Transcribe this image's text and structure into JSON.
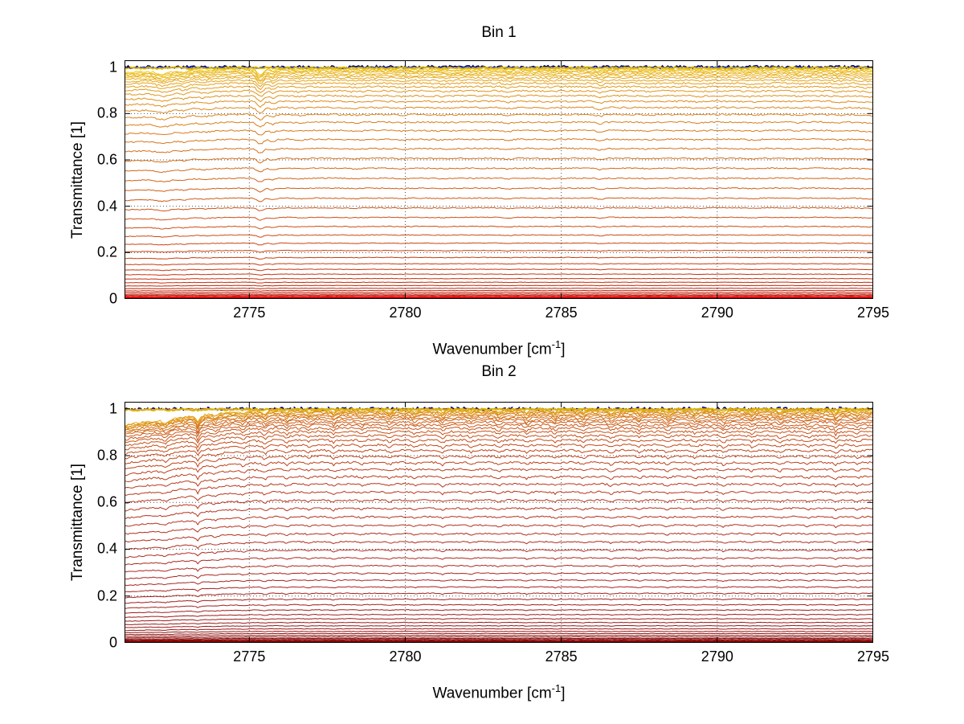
{
  "figure": {
    "background": "#ffffff"
  },
  "chart_data": [
    {
      "type": "line",
      "title": "Bin 1",
      "xlabel_pre": "Wavenumber [cm",
      "xlabel_sup": "-1",
      "xlabel_post": "]",
      "ylabel": "Transmittance [1]",
      "xlim": [
        2771,
        2795
      ],
      "ylim": [
        0,
        1
      ],
      "xticks": [
        2775,
        2780,
        2785,
        2790,
        2795
      ],
      "xticklabels": [
        "2775",
        "2780",
        "2785",
        "2790",
        "2795"
      ],
      "yticks": [
        0,
        0.2,
        0.4,
        0.6,
        0.8,
        1
      ],
      "yticklabels": [
        "0",
        "0.2",
        "0.4",
        "0.6",
        "0.8",
        "1"
      ],
      "grid": true,
      "grid_style": "dotted",
      "levels": [
        0.995,
        0.99,
        0.985,
        0.979,
        0.972,
        0.964,
        0.955,
        0.944,
        0.931,
        0.916,
        0.898,
        0.877,
        0.853,
        0.826,
        0.796,
        0.763,
        0.727,
        0.689,
        0.649,
        0.607,
        0.564,
        0.521,
        0.478,
        0.435,
        0.393,
        0.352,
        0.313,
        0.276,
        0.241,
        0.209,
        0.179,
        0.152,
        0.128,
        0.107,
        0.088,
        0.072,
        0.058,
        0.046,
        0.036,
        0.028,
        0.021,
        0.016,
        0.011,
        0.008,
        0.005,
        0.003
      ],
      "feature_shape": "gauss",
      "features": [
        [
          2772.25,
          0.22,
          0.05
        ],
        [
          2772.9,
          0.13,
          0.03
        ],
        [
          2773.6,
          0.18,
          0.02
        ],
        [
          2775.35,
          0.1,
          0.09
        ],
        [
          2775.75,
          0.09,
          0.04
        ],
        [
          2776.6,
          0.15,
          0.015
        ],
        [
          2778.4,
          0.2,
          0.013
        ],
        [
          2779.9,
          0.15,
          0.012
        ],
        [
          2781.2,
          0.25,
          0.01
        ],
        [
          2783.3,
          0.12,
          0.02
        ],
        [
          2784.6,
          0.15,
          0.01
        ],
        [
          2786.25,
          0.1,
          0.03
        ],
        [
          2787.8,
          0.18,
          0.01
        ],
        [
          2789.4,
          0.14,
          0.012
        ],
        [
          2791.1,
          0.2,
          0.012
        ],
        [
          2792.6,
          0.12,
          0.01
        ],
        [
          2793.9,
          0.15,
          0.014
        ],
        [
          2794.9,
          0.25,
          0.02
        ]
      ],
      "left_edge_absorption": {
        "edge": 2775.0,
        "span": 4.0,
        "max": 0.06,
        "pow": 1.5
      },
      "noise_amp": 0.004,
      "color_stops": [
        {
          "t": 0,
          "c": "#ecc51f"
        },
        {
          "t": 0.3,
          "c": "#dd8418"
        },
        {
          "t": 0.55,
          "c": "#cf5214"
        },
        {
          "t": 0.8,
          "c": "#c42a0e"
        },
        {
          "t": 1,
          "c": "#b00505"
        }
      ],
      "reference_lines": [
        {
          "level": 1.001,
          "color": "#00008b",
          "noise": 0.006,
          "width": 1.6,
          "dash": ""
        },
        {
          "level": 0.999,
          "color": "#1f3fbf",
          "noise": 0.004,
          "width": 1,
          "dash": ""
        },
        {
          "level": 0.997,
          "color": "#d7b400",
          "noise": 0.004,
          "width": 2,
          "dash": ""
        }
      ],
      "baseline": {
        "level": 0.004,
        "color": "#e60000",
        "width": 4
      }
    },
    {
      "type": "line",
      "title": "Bin 2",
      "xlabel_pre": "Wavenumber [cm",
      "xlabel_sup": "-1",
      "xlabel_post": "]",
      "ylabel": "Transmittance [1]",
      "xlim": [
        2771,
        2795
      ],
      "ylim": [
        0,
        1
      ],
      "xticks": [
        2775,
        2780,
        2785,
        2790,
        2795
      ],
      "xticklabels": [
        "2775",
        "2780",
        "2785",
        "2790",
        "2795"
      ],
      "yticks": [
        0,
        0.2,
        0.4,
        0.6,
        0.8,
        1
      ],
      "yticklabels": [
        "0",
        "0.2",
        "0.4",
        "0.6",
        "0.8",
        "1"
      ],
      "grid": true,
      "grid_style": "dotted",
      "levels": [
        0.996,
        0.992,
        0.988,
        0.983,
        0.977,
        0.97,
        0.962,
        0.953,
        0.943,
        0.931,
        0.918,
        0.903,
        0.886,
        0.867,
        0.846,
        0.823,
        0.798,
        0.771,
        0.742,
        0.711,
        0.679,
        0.645,
        0.61,
        0.575,
        0.539,
        0.503,
        0.467,
        0.432,
        0.397,
        0.363,
        0.33,
        0.298,
        0.268,
        0.239,
        0.212,
        0.187,
        0.163,
        0.141,
        0.121,
        0.103,
        0.087,
        0.073,
        0.06,
        0.049,
        0.04,
        0.032,
        0.025,
        0.019,
        0.015,
        0.011,
        0.008,
        0.006,
        0.004,
        0.003,
        0.002
      ],
      "feature_shape": "spike",
      "features": [
        [
          2772.3,
          0.15,
          0.06
        ],
        [
          2773.35,
          0.08,
          0.1
        ],
        [
          2773.9,
          0.1,
          0.04
        ],
        [
          2774.8,
          0.09,
          0.05
        ],
        [
          2775.5,
          0.08,
          0.07
        ],
        [
          2776.2,
          0.09,
          0.05
        ],
        [
          2776.9,
          0.08,
          0.04
        ],
        [
          2777.7,
          0.09,
          0.05
        ],
        [
          2778.6,
          0.08,
          0.04
        ],
        [
          2779.5,
          0.09,
          0.045
        ],
        [
          2780.3,
          0.08,
          0.04
        ],
        [
          2781.2,
          0.09,
          0.05
        ],
        [
          2782.1,
          0.08,
          0.04
        ],
        [
          2783.0,
          0.09,
          0.045
        ],
        [
          2783.9,
          0.08,
          0.05
        ],
        [
          2784.8,
          0.09,
          0.04
        ],
        [
          2785.7,
          0.08,
          0.045
        ],
        [
          2786.6,
          0.09,
          0.05
        ],
        [
          2787.5,
          0.08,
          0.04
        ],
        [
          2788.4,
          0.09,
          0.045
        ],
        [
          2789.3,
          0.08,
          0.04
        ],
        [
          2790.2,
          0.09,
          0.05
        ],
        [
          2791.1,
          0.08,
          0.04
        ],
        [
          2792.0,
          0.09,
          0.045
        ],
        [
          2792.9,
          0.08,
          0.04
        ],
        [
          2793.8,
          0.09,
          0.05
        ],
        [
          2794.5,
          0.08,
          0.04
        ]
      ],
      "left_edge_absorption": {
        "edge": 2776.0,
        "span": 5.0,
        "max": 0.22,
        "pow": 1.6
      },
      "noise_amp": 0.005,
      "color_stops": [
        {
          "t": 0,
          "c": "#e5a817"
        },
        {
          "t": 0.15,
          "c": "#cc5b18"
        },
        {
          "t": 0.35,
          "c": "#bb3a1a"
        },
        {
          "t": 0.6,
          "c": "#a82420"
        },
        {
          "t": 1,
          "c": "#7d0c0c"
        }
      ],
      "reference_lines": [
        {
          "level": 1.001,
          "color": "#00008b",
          "noise": 0.006,
          "width": 1.6,
          "dash": "6 4"
        },
        {
          "level": 0.999,
          "color": "#e07000",
          "noise": 0.004,
          "width": 1,
          "dash": ""
        },
        {
          "level": 0.997,
          "color": "#d7b400",
          "noise": 0.004,
          "width": 2,
          "dash": ""
        }
      ],
      "baseline": {
        "level": 0.004,
        "color": "#8b0000",
        "width": 4
      }
    }
  ]
}
